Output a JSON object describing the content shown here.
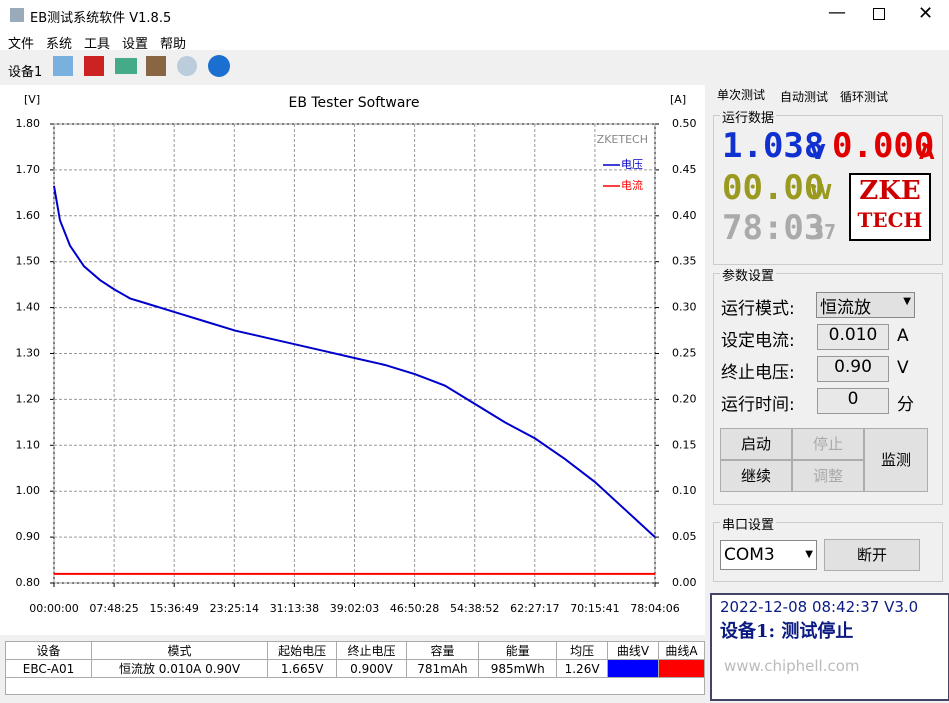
{
  "window": {
    "title": "EB测试系统软件 V1.8.5"
  },
  "menu": [
    "文件",
    "系统",
    "工具",
    "设置",
    "帮助"
  ],
  "toolbar": {
    "device": "设备1"
  },
  "chart_data": {
    "type": "line",
    "title": "EB Tester Software",
    "y_unit": "[V]",
    "y2_unit": "[A]",
    "watermark": "ZKETECH",
    "x": [
      0,
      2806,
      7482,
      14029,
      21510,
      28058,
      35539,
      42554,
      56583,
      70612,
      84642,
      98671,
      112700,
      126729,
      140759,
      154788,
      168817,
      182846,
      196876,
      210905,
      224934,
      238963,
      252993,
      267022,
      281046
    ],
    "xlim": [
      0,
      281046
    ],
    "xticks": [
      {
        "value": 0,
        "label": "00:00:00"
      },
      {
        "value": 28105,
        "label": "07:48:25"
      },
      {
        "value": 56209,
        "label": "15:36:49"
      },
      {
        "value": 84314,
        "label": "23:25:14"
      },
      {
        "value": 112418,
        "label": "31:13:38"
      },
      {
        "value": 140523,
        "label": "39:02:03"
      },
      {
        "value": 168628,
        "label": "46:50:28"
      },
      {
        "value": 196732,
        "label": "54:38:52"
      },
      {
        "value": 224837,
        "label": "62:27:17"
      },
      {
        "value": 252941,
        "label": "70:15:41"
      },
      {
        "value": 281046,
        "label": "78:04:06"
      }
    ],
    "ylim": [
      0.8,
      1.8
    ],
    "yticks": [
      {
        "value": 0.8,
        "label": "0.80"
      },
      {
        "value": 0.9,
        "label": "0.90"
      },
      {
        "value": 1.0,
        "label": "1.00"
      },
      {
        "value": 1.1,
        "label": "1.10"
      },
      {
        "value": 1.2,
        "label": "1.20"
      },
      {
        "value": 1.3,
        "label": "1.30"
      },
      {
        "value": 1.4,
        "label": "1.40"
      },
      {
        "value": 1.5,
        "label": "1.50"
      },
      {
        "value": 1.6,
        "label": "1.60"
      },
      {
        "value": 1.7,
        "label": "1.70"
      },
      {
        "value": 1.8,
        "label": "1.80"
      }
    ],
    "y2lim": [
      0,
      0.5
    ],
    "y2ticks": [
      {
        "value": 0,
        "label": "0.00"
      },
      {
        "value": 0.05,
        "label": "0.05"
      },
      {
        "value": 0.1,
        "label": "0.10"
      },
      {
        "value": 0.15,
        "label": "0.15"
      },
      {
        "value": 0.2,
        "label": "0.20"
      },
      {
        "value": 0.25,
        "label": "0.25"
      },
      {
        "value": 0.3,
        "label": "0.30"
      },
      {
        "value": 0.35,
        "label": "0.35"
      },
      {
        "value": 0.4,
        "label": "0.40"
      },
      {
        "value": 0.45,
        "label": "0.45"
      },
      {
        "value": 0.5,
        "label": "0.50"
      }
    ],
    "grid": true,
    "legend": "upper right",
    "series": [
      {
        "name": "电压",
        "color": "#0000cc",
        "values": [
          1.665,
          1.59,
          1.535,
          1.49,
          1.46,
          1.44,
          1.42,
          1.41,
          1.39,
          1.37,
          1.35,
          1.335,
          1.32,
          1.305,
          1.29,
          1.275,
          1.255,
          1.23,
          1.19,
          1.15,
          1.115,
          1.07,
          1.02,
          0.96,
          0.9
        ]
      },
      {
        "name": "电流",
        "color": "#ff0000",
        "axis": "y2",
        "values": [
          0.01,
          0.01,
          0.01,
          0.01,
          0.01,
          0.01,
          0.01,
          0.01,
          0.01,
          0.01,
          0.01,
          0.01,
          0.01,
          0.01,
          0.01,
          0.01,
          0.01,
          0.01,
          0.01,
          0.01,
          0.01,
          0.01,
          0.01,
          0.01,
          0.01
        ]
      }
    ]
  },
  "tabs": [
    "单次测试",
    "自动测试",
    "循环测试"
  ],
  "run_data": {
    "title": "运行数据",
    "voltage": "1.038",
    "voltage_unit": "V",
    "current": "0.000",
    "current_unit": "A",
    "power": "00.00",
    "power_unit": "W",
    "time": "78:03",
    "seconds": "37",
    "logo_top": "ZKE",
    "logo_bottom": "TECH"
  },
  "params": {
    "title": "参数设置",
    "rows": [
      [
        "运行模式:",
        "恒流放",
        ""
      ],
      [
        "设定电流:",
        "0.010",
        "A"
      ],
      [
        "终止电压:",
        "0.90",
        "V"
      ],
      [
        "运行时间:",
        "0",
        "分"
      ]
    ],
    "buttons": [
      "启动",
      "停止",
      "继续",
      "调整",
      "监测"
    ]
  },
  "serial": {
    "title": "串口设置",
    "port": "COM3",
    "button": "断开"
  },
  "status": {
    "line1": "2022-12-08 08:42:37  V3.0",
    "line2": "设备1: 测试停止",
    "watermark": "www.chiphell.com"
  },
  "table": {
    "headers": [
      "设备",
      "模式",
      "起始电压",
      "终止电压",
      "容量",
      "能量",
      "均压",
      "曲线V",
      "曲线A"
    ],
    "rows": [
      [
        "EBC-A01",
        "恒流放  0.010A  0.90V",
        "1.665V",
        "0.900V",
        "781mAh",
        "985mWh",
        "1.26V",
        "",
        ""
      ]
    ]
  }
}
